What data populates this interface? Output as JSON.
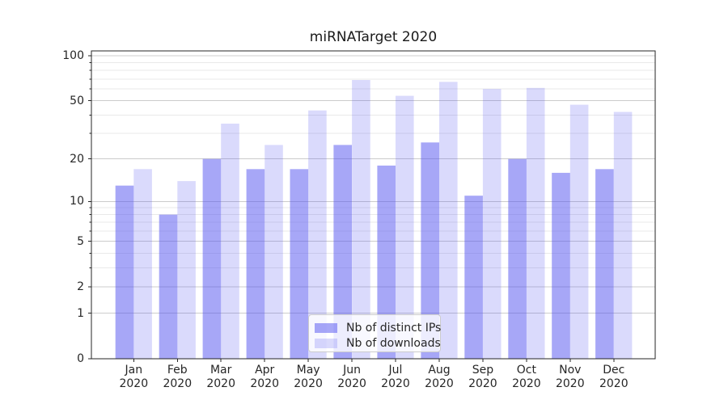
{
  "chart_data": {
    "type": "bar",
    "title": "miRNATarget 2020",
    "categories": [
      {
        "label": "Jan",
        "sub": "2020"
      },
      {
        "label": "Feb",
        "sub": "2020"
      },
      {
        "label": "Mar",
        "sub": "2020"
      },
      {
        "label": "Apr",
        "sub": "2020"
      },
      {
        "label": "May",
        "sub": "2020"
      },
      {
        "label": "Jun",
        "sub": "2020"
      },
      {
        "label": "Jul",
        "sub": "2020"
      },
      {
        "label": "Aug",
        "sub": "2020"
      },
      {
        "label": "Sep",
        "sub": "2020"
      },
      {
        "label": "Oct",
        "sub": "2020"
      },
      {
        "label": "Nov",
        "sub": "2020"
      },
      {
        "label": "Dec",
        "sub": "2020"
      }
    ],
    "series": [
      {
        "name": "Nb of distinct IPs",
        "color": "rgba(80,80,240,0.5)",
        "values": [
          13,
          8,
          20,
          17,
          17,
          25,
          18,
          26,
          11,
          20,
          16,
          17
        ]
      },
      {
        "name": "Nb of downloads",
        "color": "rgba(80,80,240,0.21)",
        "values": [
          17,
          14,
          35,
          25,
          43,
          69,
          54,
          67,
          60,
          61,
          47,
          42
        ]
      }
    ],
    "yticks": [
      0,
      1,
      2,
      5,
      10,
      20,
      50,
      100
    ],
    "minor_gridlines": [
      3,
      4,
      6,
      7,
      8,
      9,
      30,
      40,
      60,
      70,
      80,
      90
    ],
    "scale": "log1p",
    "ylim": [
      0,
      108
    ],
    "xlabel": "",
    "ylabel": "",
    "grid": "horizontal",
    "legend_position": "lower center",
    "colors": {
      "major_grid": "#cccccc",
      "minor_grid": "#e9e9e9",
      "spine": "#262626",
      "text": "#262626"
    }
  }
}
